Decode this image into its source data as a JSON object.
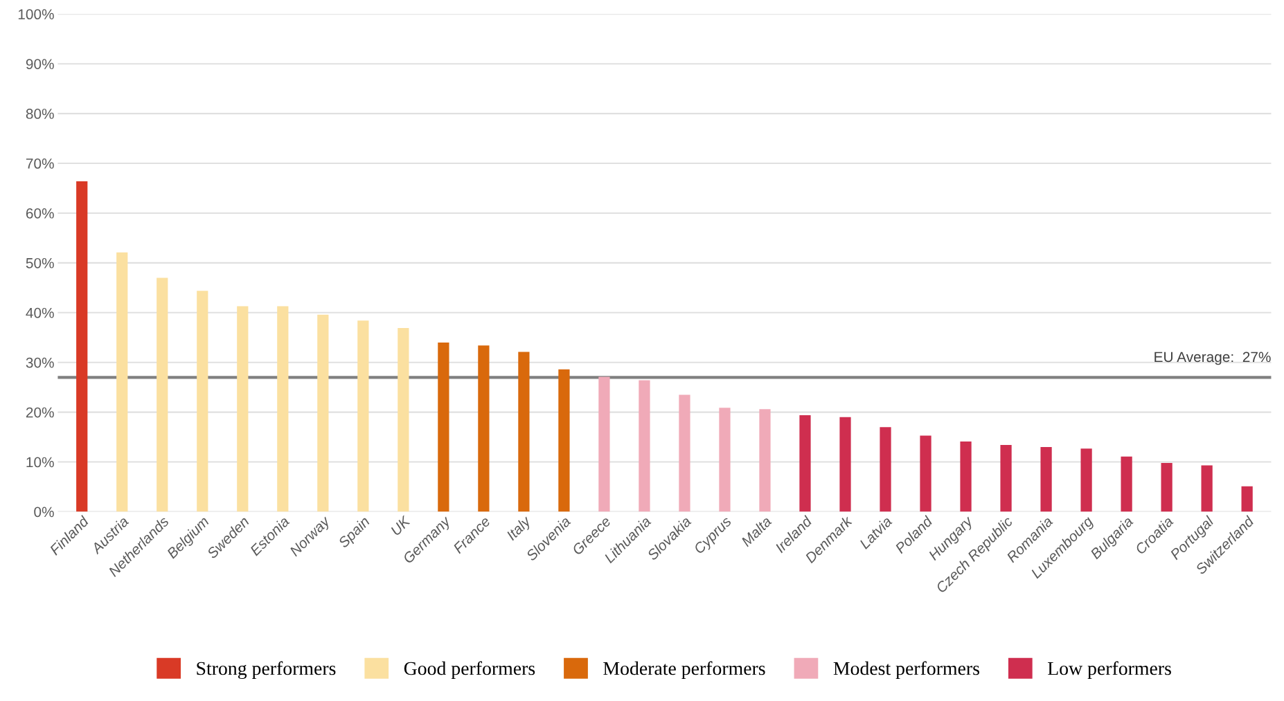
{
  "chart_data": {
    "type": "bar",
    "categories": [
      "Finland",
      "Austria",
      "Netherlands",
      "Belgium",
      "Sweden",
      "Estonia",
      "Norway",
      "Spain",
      "UK",
      "Germany",
      "France",
      "Italy",
      "Slovenia",
      "Greece",
      "Lithuania",
      "Slovakia",
      "Cyprus",
      "Malta",
      "Ireland",
      "Denmark",
      "Latvia",
      "Poland",
      "Hungary",
      "Czech Republic",
      "Romania",
      "Luxembourg",
      "Bulgaria",
      "Croatia",
      "Portugal",
      "Switzerland"
    ],
    "series": [
      {
        "name": "Strong performers",
        "color": "#d93a26",
        "values": [
          66.4,
          null,
          null,
          null,
          null,
          null,
          null,
          null,
          null,
          null,
          null,
          null,
          null,
          null,
          null,
          null,
          null,
          null,
          null,
          null,
          null,
          null,
          null,
          null,
          null,
          null,
          null,
          null,
          null,
          null
        ]
      },
      {
        "name": "Good performers",
        "color": "#fbe0a0",
        "values": [
          null,
          52.1,
          47.0,
          44.4,
          41.3,
          41.3,
          39.6,
          38.4,
          36.9,
          null,
          null,
          null,
          null,
          null,
          null,
          null,
          null,
          null,
          null,
          null,
          null,
          null,
          null,
          null,
          null,
          null,
          null,
          null,
          null,
          null
        ]
      },
      {
        "name": "Moderate performers",
        "color": "#d9690c",
        "values": [
          null,
          null,
          null,
          null,
          null,
          null,
          null,
          null,
          null,
          34.0,
          33.4,
          32.1,
          28.6,
          null,
          null,
          null,
          null,
          null,
          null,
          null,
          null,
          null,
          null,
          null,
          null,
          null,
          null,
          null,
          null,
          null
        ]
      },
      {
        "name": "Modest performers",
        "color": "#f0aab8",
        "values": [
          null,
          null,
          null,
          null,
          null,
          null,
          null,
          null,
          null,
          null,
          null,
          null,
          null,
          27.1,
          26.4,
          23.5,
          20.9,
          20.6,
          null,
          null,
          null,
          null,
          null,
          null,
          null,
          null,
          null,
          null,
          null,
          null
        ]
      },
      {
        "name": "Low performers",
        "color": "#cf2e4f",
        "values": [
          null,
          null,
          null,
          null,
          null,
          null,
          null,
          null,
          null,
          null,
          null,
          null,
          null,
          null,
          null,
          null,
          null,
          null,
          19.4,
          19.0,
          17.0,
          15.3,
          14.1,
          13.4,
          13.0,
          12.7,
          11.1,
          9.8,
          9.3,
          5.1
        ]
      }
    ],
    "ylim": [
      0,
      100
    ],
    "yticks": [
      {
        "value": 0,
        "label": "0%"
      },
      {
        "value": 10,
        "label": "10%"
      },
      {
        "value": 20,
        "label": "20%"
      },
      {
        "value": 30,
        "label": "30%"
      },
      {
        "value": 40,
        "label": "40%"
      },
      {
        "value": 50,
        "label": "50%"
      },
      {
        "value": 60,
        "label": "60%"
      },
      {
        "value": 70,
        "label": "70%"
      },
      {
        "value": 80,
        "label": "80%"
      },
      {
        "value": 90,
        "label": "90%"
      },
      {
        "value": 100,
        "label": "100%"
      }
    ],
    "ref_lines": [
      {
        "axis": "y",
        "value": 27,
        "label": "EU Average:  27%",
        "color": "#808080"
      }
    ],
    "grid": "y",
    "legend": "bottom"
  }
}
